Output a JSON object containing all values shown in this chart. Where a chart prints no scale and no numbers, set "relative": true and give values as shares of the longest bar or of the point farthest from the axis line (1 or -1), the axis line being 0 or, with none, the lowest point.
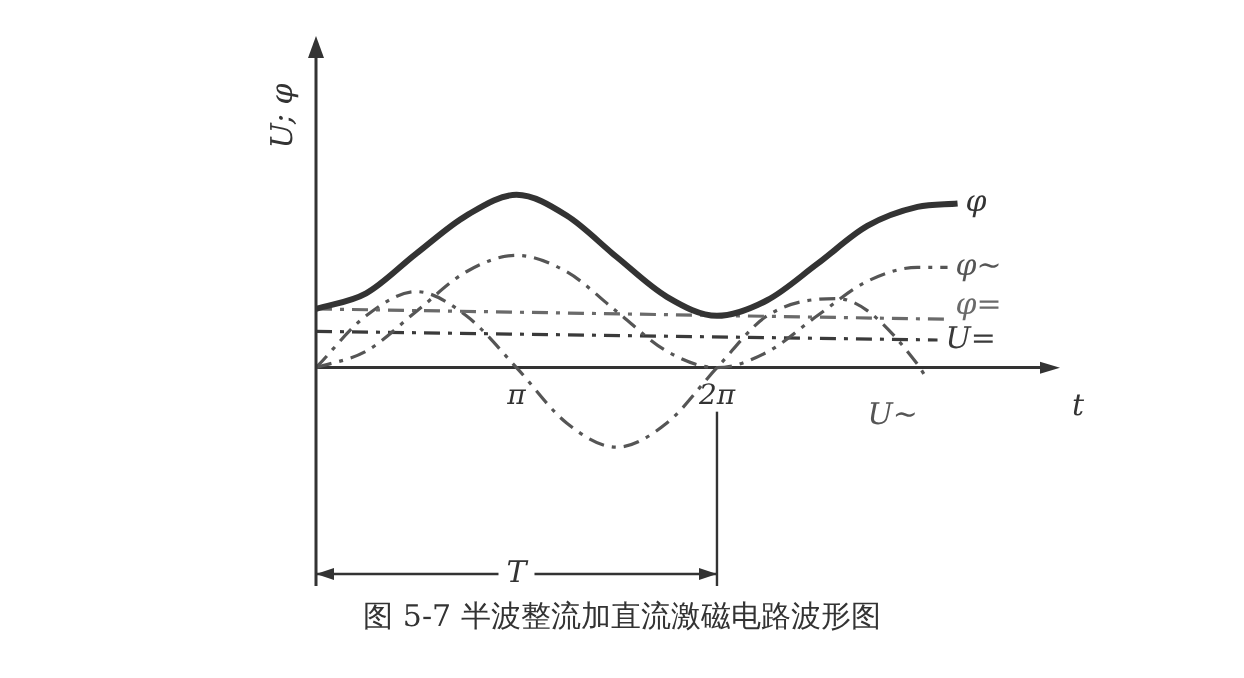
{
  "chart_data": {
    "type": "line",
    "relative": true,
    "ylabel": "U; φ",
    "xlabel": "t",
    "xlim": [
      0,
      11.47
    ],
    "xticks": [
      {
        "value": 3.142,
        "label": "π"
      },
      {
        "value": 6.283,
        "label": "2π"
      }
    ],
    "tick_labels": "x",
    "grid": false,
    "legend": false,
    "marker": "none",
    "annotations": [
      "图 5-7 半波整流加直流激磁电路波形图",
      "T"
    ],
    "series": [
      {
        "name": "φ",
        "color": "#333333",
        "line_style": "solid",
        "x": [
          0,
          0.785,
          1.571,
          2.356,
          3.142,
          3.927,
          4.712,
          5.498,
          6.283,
          7.069,
          7.854,
          8.639,
          9.425,
          10.053
        ],
        "values": [
          0.34,
          0.43,
          0.66,
          0.88,
          1,
          0.88,
          0.64,
          0.41,
          0.3,
          0.39,
          0.6,
          0.82,
          0.93,
          0.95
        ]
      },
      {
        "name": "φ~",
        "color": "#555555",
        "line_style": "dashed",
        "x": [
          0,
          0.785,
          1.571,
          2.356,
          3.142,
          3.927,
          4.712,
          5.498,
          6.283,
          7.069,
          7.854,
          8.639,
          9.425,
          9.896
        ],
        "values": [
          0,
          0.095,
          0.325,
          0.555,
          0.65,
          0.555,
          0.325,
          0.095,
          0,
          0.09,
          0.3,
          0.5,
          0.58,
          0.58
        ]
      },
      {
        "name": "φ=",
        "color": "#6a6a6a",
        "line_style": "dashed",
        "x": [
          0,
          9.896
        ],
        "values": [
          0.34,
          0.28
        ]
      },
      {
        "name": "U=",
        "color": "#3a3a3a",
        "line_style": "dashed",
        "x": [
          0,
          9.739
        ],
        "values": [
          0.21,
          0.16
        ]
      },
      {
        "name": "U~",
        "color": "#555555",
        "line_style": "dashed",
        "x": [
          0,
          0.785,
          1.571,
          2.356,
          3.142,
          3.927,
          4.712,
          5.498,
          6.283,
          7.069,
          8.168,
          8.639,
          9.425,
          9.582
        ],
        "values": [
          0,
          0.3,
          0.44,
          0.3,
          0,
          -0.32,
          -0.46,
          -0.32,
          0,
          0.3,
          0.4,
          0.33,
          0.02,
          -0.07
        ]
      }
    ]
  }
}
